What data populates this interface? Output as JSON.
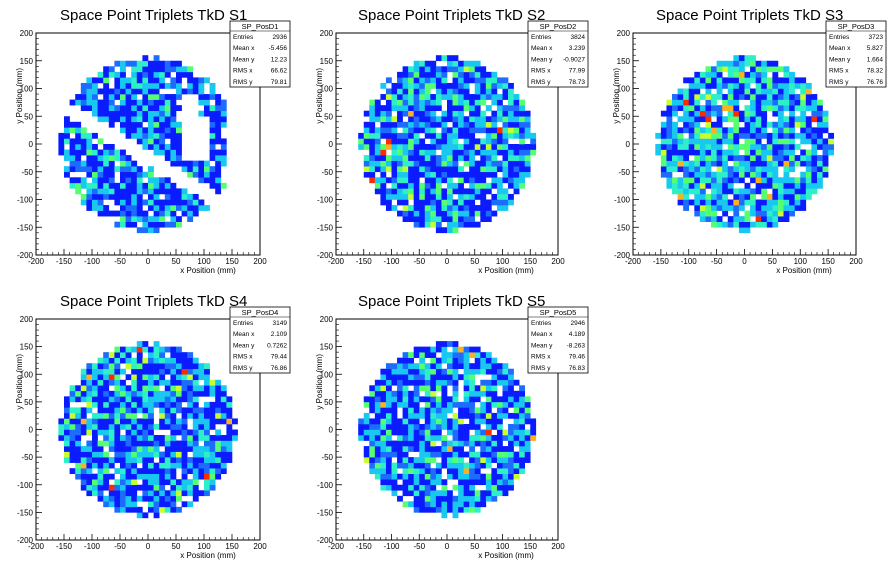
{
  "chart_data": [
    {
      "type": "heatmap",
      "title": "Space Point Triplets TkD S1",
      "xlabel": "x Position (mm)",
      "ylabel": "y Position (mm)",
      "xlim": [
        -200,
        200
      ],
      "ylim": [
        -200,
        200
      ],
      "xticks": [
        -200,
        -150,
        -100,
        -50,
        0,
        50,
        100,
        150,
        200
      ],
      "yticks": [
        -200,
        -150,
        -100,
        -50,
        0,
        50,
        100,
        150,
        200
      ],
      "bin_size": 10,
      "active_radius": 160,
      "distribution": "disc with empty diagonal strip and empty crescent near x = +60 to +110 mm",
      "stats": {
        "name": "SP_PosD1",
        "rows": [
          {
            "label": "Entries",
            "value": "2936"
          },
          {
            "label": "Mean x",
            "value": "-5.456"
          },
          {
            "label": "Mean y",
            "value": "12.23"
          },
          {
            "label": "RMS x",
            "value": "66.62"
          },
          {
            "label": "RMS y",
            "value": "79.81"
          }
        ]
      }
    },
    {
      "type": "heatmap",
      "title": "Space Point Triplets TkD S2",
      "xlabel": "x Position (mm)",
      "ylabel": "y Position (mm)",
      "xlim": [
        -200,
        200
      ],
      "ylim": [
        -200,
        200
      ],
      "xticks": [
        -200,
        -150,
        -100,
        -50,
        0,
        50,
        100,
        150,
        200
      ],
      "yticks": [
        -200,
        -150,
        -100,
        -50,
        0,
        50,
        100,
        150,
        200
      ],
      "bin_size": 10,
      "active_radius": 160,
      "distribution": "uniform disc",
      "stats": {
        "name": "SP_PosD2",
        "rows": [
          {
            "label": "Entries",
            "value": "3824"
          },
          {
            "label": "Mean x",
            "value": "3.239"
          },
          {
            "label": "Mean y",
            "value": "-0.9027"
          },
          {
            "label": "RMS x",
            "value": "77.99"
          },
          {
            "label": "RMS y",
            "value": "78.73"
          }
        ]
      }
    },
    {
      "type": "heatmap",
      "title": "Space Point Triplets TkD S3",
      "xlabel": "x Position (mm)",
      "ylabel": "y Position (mm)",
      "xlim": [
        -200,
        200
      ],
      "ylim": [
        -200,
        200
      ],
      "xticks": [
        -200,
        -150,
        -100,
        -50,
        0,
        50,
        100,
        150,
        200
      ],
      "yticks": [
        -200,
        -150,
        -100,
        -50,
        0,
        50,
        100,
        150,
        200
      ],
      "bin_size": 10,
      "active_radius": 160,
      "distribution": "uniform disc",
      "stats": {
        "name": "SP_PosD3",
        "rows": [
          {
            "label": "Entries",
            "value": "3723"
          },
          {
            "label": "Mean x",
            "value": "5.827"
          },
          {
            "label": "Mean y",
            "value": "1.664"
          },
          {
            "label": "RMS x",
            "value": "78.32"
          },
          {
            "label": "RMS y",
            "value": "76.76"
          }
        ]
      }
    },
    {
      "type": "heatmap",
      "title": "Space Point Triplets TkD S4",
      "xlabel": "x Position (mm)",
      "ylabel": "y Position (mm)",
      "xlim": [
        -200,
        200
      ],
      "ylim": [
        -200,
        200
      ],
      "xticks": [
        -200,
        -150,
        -100,
        -50,
        0,
        50,
        100,
        150,
        200
      ],
      "yticks": [
        -200,
        -150,
        -100,
        -50,
        0,
        50,
        100,
        150,
        200
      ],
      "bin_size": 10,
      "active_radius": 160,
      "distribution": "uniform disc",
      "stats": {
        "name": "SP_PosD4",
        "rows": [
          {
            "label": "Entries",
            "value": "3149"
          },
          {
            "label": "Mean x",
            "value": "2.109"
          },
          {
            "label": "Mean y",
            "value": "0.7262"
          },
          {
            "label": "RMS x",
            "value": "79.44"
          },
          {
            "label": "RMS y",
            "value": "76.86"
          }
        ]
      }
    },
    {
      "type": "heatmap",
      "title": "Space Point Triplets TkD S5",
      "xlabel": "x Position (mm)",
      "ylabel": "y Position (mm)",
      "xlim": [
        -200,
        200
      ],
      "ylim": [
        -200,
        200
      ],
      "xticks": [
        -200,
        -150,
        -100,
        -50,
        0,
        50,
        100,
        150,
        200
      ],
      "yticks": [
        -200,
        -150,
        -100,
        -50,
        0,
        50,
        100,
        150,
        200
      ],
      "bin_size": 10,
      "active_radius": 160,
      "distribution": "uniform disc",
      "stats": {
        "name": "SP_PosD5",
        "rows": [
          {
            "label": "Entries",
            "value": "2946"
          },
          {
            "label": "Mean x",
            "value": "4.189"
          },
          {
            "label": "Mean y",
            "value": "-8.263"
          },
          {
            "label": "RMS x",
            "value": "79.46"
          },
          {
            "label": "RMS y",
            "value": "76.83"
          }
        ]
      }
    }
  ],
  "palette": [
    "#0a1cff",
    "#1e6bff",
    "#18c8f0",
    "#2ef0c8",
    "#55ff70",
    "#c8ff30",
    "#ffb020",
    "#ff2a00"
  ]
}
